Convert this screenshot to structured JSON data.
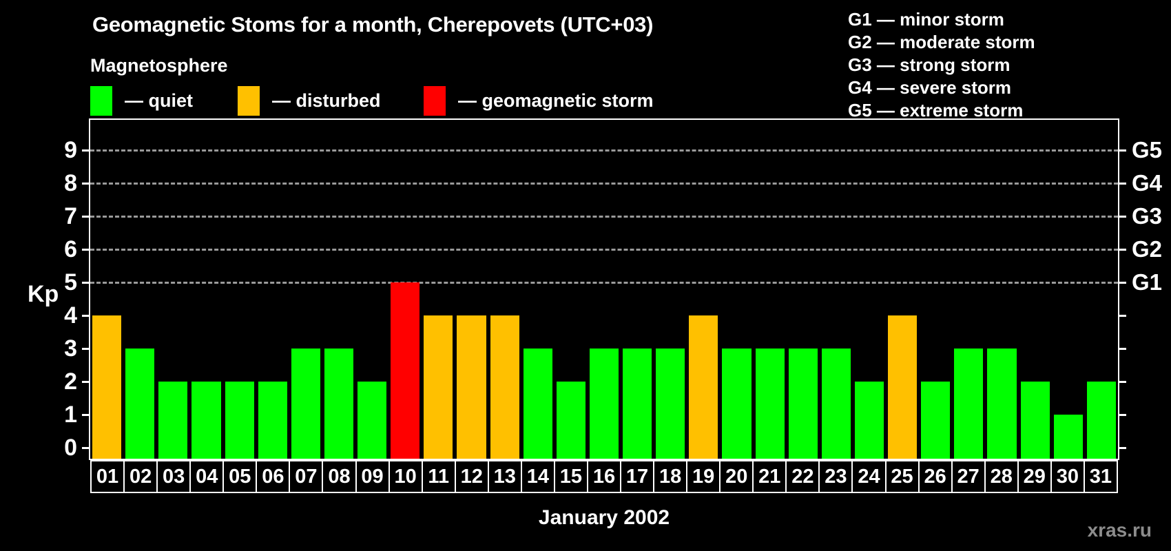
{
  "title": "Geomagnetic Stoms for a month, Cherepovets (UTC+03)",
  "watermark": "xras.ru",
  "legend": {
    "heading": "Magnetosphere",
    "items": [
      {
        "name": "quiet",
        "label": "— quiet",
        "color": "#00ff00",
        "x": 131
      },
      {
        "name": "disturbed",
        "label": "— disturbed",
        "color": "#ffc000",
        "x": 345
      },
      {
        "name": "storm",
        "label": "— geomagnetic storm",
        "color": "#ff0000",
        "x": 615
      }
    ]
  },
  "g_scale_legend": [
    "G1 — minor storm",
    "G2 — moderate storm",
    "G3 — strong storm",
    "G4 — severe storm",
    "G5 — extreme storm"
  ],
  "chart_data": {
    "type": "bar",
    "title": "Geomagnetic Stoms for a month, Cherepovets (UTC+03)",
    "xlabel": "January 2002",
    "ylabel": "Kp",
    "ylim": [
      0,
      9
    ],
    "yticks": [
      0,
      1,
      2,
      3,
      4,
      5,
      6,
      7,
      8,
      9
    ],
    "gridlines_at": [
      5,
      6,
      7,
      8,
      9
    ],
    "grid": "dashed horizontal at G-storm levels only",
    "legend_position": "top",
    "right_axis": [
      {
        "label": "G1",
        "level": 5
      },
      {
        "label": "G2",
        "level": 6
      },
      {
        "label": "G3",
        "level": 7
      },
      {
        "label": "G4",
        "level": 8
      },
      {
        "label": "G5",
        "level": 9
      }
    ],
    "categories": [
      "01",
      "02",
      "03",
      "04",
      "05",
      "06",
      "07",
      "08",
      "09",
      "10",
      "11",
      "12",
      "13",
      "14",
      "15",
      "16",
      "17",
      "18",
      "19",
      "20",
      "21",
      "22",
      "23",
      "24",
      "25",
      "26",
      "27",
      "28",
      "29",
      "30",
      "31"
    ],
    "values": [
      4,
      3,
      2,
      2,
      2,
      2,
      3,
      3,
      2,
      5,
      4,
      4,
      4,
      3,
      2,
      3,
      3,
      3,
      4,
      3,
      3,
      3,
      3,
      2,
      4,
      2,
      3,
      3,
      2,
      1,
      2
    ],
    "statuses": [
      "disturbed",
      "quiet",
      "quiet",
      "quiet",
      "quiet",
      "quiet",
      "quiet",
      "quiet",
      "quiet",
      "storm",
      "disturbed",
      "disturbed",
      "disturbed",
      "quiet",
      "quiet",
      "quiet",
      "quiet",
      "quiet",
      "disturbed",
      "quiet",
      "quiet",
      "quiet",
      "quiet",
      "quiet",
      "disturbed",
      "quiet",
      "quiet",
      "quiet",
      "quiet",
      "quiet",
      "quiet"
    ],
    "colors": {
      "quiet": "#00ff00",
      "disturbed": "#ffc000",
      "storm": "#ff0000"
    },
    "gridline_color": "#9a9a9a",
    "axis_color": "#ffffff",
    "background_color": "#000000"
  }
}
